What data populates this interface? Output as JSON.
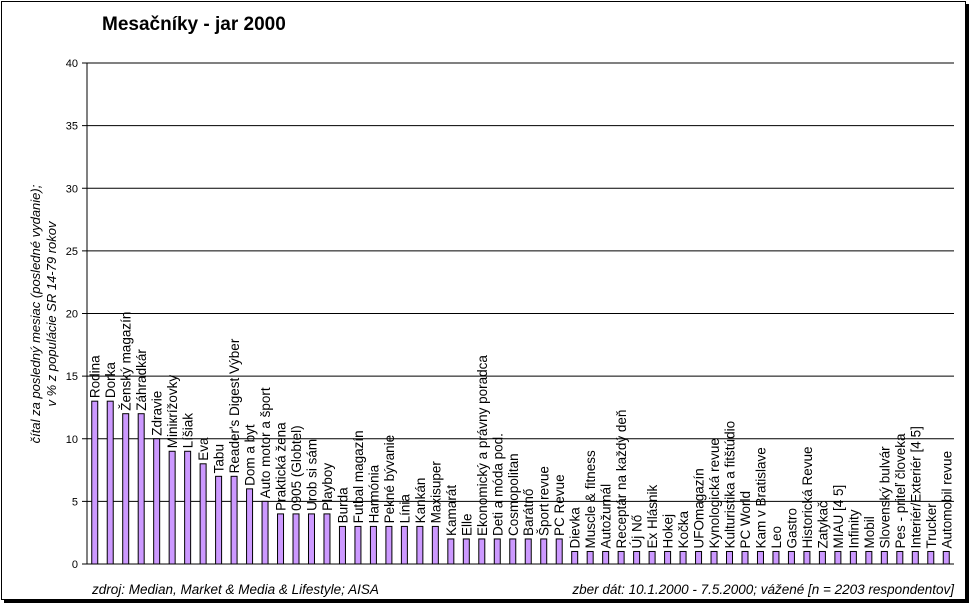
{
  "chart_data": {
    "type": "bar",
    "title": "Mesačníky - jar 2000",
    "ylabel_line1": "čítal za posledný mesiac (posledné vydanie);",
    "ylabel_line2": "v % z populácie SR 14-79 rokov",
    "ylim": [
      0,
      40
    ],
    "yticks": [
      0,
      5,
      10,
      15,
      20,
      25,
      30,
      35,
      40
    ],
    "grid": true,
    "bar_color": "#cc99ff",
    "categories": [
      "Rodina",
      "Dorka",
      "Ženský magazín",
      "Záhradkár",
      "Zdravie",
      "Miniкrížovky",
      "Líšiak",
      "Eva",
      "Tabu",
      "Reader's Digest Výber",
      "Dom a byt",
      "Auto motor a šport",
      "Praktická žena",
      "0905 (Globtel)",
      "Urob si sám",
      "Playboy",
      "Burda",
      "Futbal magazín",
      "Harmónia",
      "Pekné bývanie",
      "Línia",
      "Kankán",
      "Maxisuper",
      "Kamarát",
      "Elle",
      "Ekonomický a právny poradca",
      "Deti a móda  pod.",
      "Cosmopolitan",
      "Barátnő",
      "Šport revue",
      "PC Revue",
      "Dievka",
      "Muscle & fitness",
      "Autožurnál",
      "Receptár na každý deň",
      "Új Nő",
      "Ex Hlásnik",
      "Hokej",
      "Kočka",
      "UFOmagazín",
      "Kynologická revue",
      "Kulturistika a fitštúdio",
      "PC World",
      "Kam v Bratislave",
      "Leo",
      "Gastro",
      "Historická Revue",
      "Zatykač",
      "MIAU [4 5]",
      "Infinity",
      "Mobil",
      "Slovenský bulvár",
      "Pes - priteľ človeka",
      "Interiér/Exteriér [4 5]",
      "Trucker",
      "Automobil revue"
    ],
    "values": [
      13,
      13,
      12,
      12,
      10,
      9,
      9,
      8,
      7,
      7,
      6,
      5,
      4,
      4,
      4,
      4,
      3,
      3,
      3,
      3,
      3,
      3,
      3,
      2,
      2,
      2,
      2,
      2,
      2,
      2,
      2,
      1,
      1,
      1,
      1,
      1,
      1,
      1,
      1,
      1,
      1,
      1,
      1,
      1,
      1,
      1,
      1,
      1,
      1,
      1,
      1,
      1,
      1,
      1,
      1,
      1
    ]
  },
  "footer": {
    "source": "zdroj: Median, Market & Media & Lifestyle; AISA",
    "sample": "zber dát: 10.1.2000 - 7.5.2000; vážené [n = 2203 respondentov]"
  }
}
